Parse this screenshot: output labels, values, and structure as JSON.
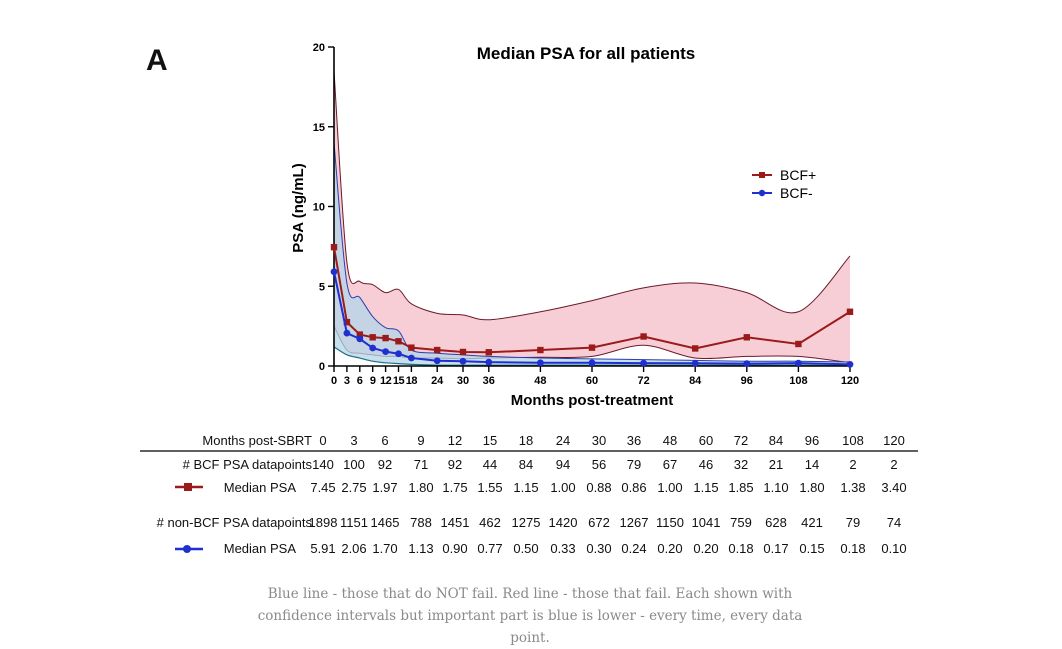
{
  "panel_label": "A",
  "chart_data": {
    "type": "line",
    "title": "Median PSA for all patients",
    "xlabel": "Months post-treatment",
    "ylabel": "PSA (ng/mL)",
    "xlim": [
      0,
      120
    ],
    "ylim": [
      0,
      20
    ],
    "x_ticks": [
      0,
      3,
      6,
      9,
      12,
      15,
      18,
      24,
      30,
      36,
      48,
      60,
      72,
      84,
      96,
      108,
      120
    ],
    "y_ticks": [
      0,
      5,
      10,
      15,
      20
    ],
    "legend_position": "right",
    "series": [
      {
        "name": "BCF+",
        "color": "#9b1b1b",
        "band_color": "#f7c6cf",
        "x": [
          0,
          3,
          6,
          9,
          12,
          15,
          18,
          24,
          30,
          36,
          48,
          60,
          72,
          84,
          96,
          108,
          120
        ],
        "median": [
          7.45,
          2.75,
          1.97,
          1.8,
          1.75,
          1.55,
          1.15,
          1.0,
          0.88,
          0.86,
          1.0,
          1.15,
          1.85,
          1.1,
          1.8,
          1.38,
          3.4
        ],
        "upper": [
          18.5,
          6.5,
          5.3,
          5.1,
          4.6,
          4.8,
          3.9,
          3.3,
          3.2,
          2.9,
          3.4,
          4.1,
          4.9,
          5.2,
          4.6,
          3.4,
          6.9
        ],
        "lower": [
          2.5,
          1.0,
          0.8,
          0.7,
          0.6,
          0.6,
          0.5,
          0.5,
          0.45,
          0.5,
          0.55,
          0.6,
          1.3,
          0.5,
          0.6,
          0.6,
          0.2
        ]
      },
      {
        "name": "BCF-",
        "color": "#1f2fd0",
        "band_color": "#b4d6e8",
        "x": [
          0,
          3,
          6,
          9,
          12,
          15,
          18,
          24,
          30,
          36,
          48,
          60,
          72,
          84,
          96,
          108,
          120
        ],
        "median": [
          5.91,
          2.06,
          1.7,
          1.13,
          0.9,
          0.77,
          0.5,
          0.33,
          0.3,
          0.24,
          0.2,
          0.2,
          0.18,
          0.17,
          0.15,
          0.18,
          0.1
        ],
        "upper": [
          14.0,
          5.2,
          4.3,
          3.1,
          2.4,
          2.2,
          1.0,
          0.8,
          0.7,
          0.6,
          0.5,
          0.45,
          0.4,
          0.35,
          0.3,
          0.3,
          0.25
        ],
        "lower": [
          1.2,
          0.7,
          0.5,
          0.3,
          0.2,
          0.15,
          0.1,
          0.05,
          0.05,
          0.05,
          0.05,
          0.05,
          0.05,
          0.05,
          0.05,
          0.05,
          0.02
        ]
      }
    ],
    "table": {
      "header_label": "Months post-SBRT",
      "months": [
        "0",
        "3",
        "6",
        "9",
        "12",
        "15",
        "18",
        "24",
        "30",
        "36",
        "48",
        "60",
        "72",
        "84",
        "96",
        "108",
        "120"
      ],
      "bcf_points_label": "# BCF PSA datapoints",
      "bcf_points": [
        "140",
        "100",
        "92",
        "71",
        "92",
        "44",
        "84",
        "94",
        "56",
        "79",
        "67",
        "46",
        "32",
        "21",
        "14",
        "2",
        "2"
      ],
      "bcf_median_label": "Median PSA",
      "bcf_median": [
        "7.45",
        "2.75",
        "1.97",
        "1.80",
        "1.75",
        "1.55",
        "1.15",
        "1.00",
        "0.88",
        "0.86",
        "1.00",
        "1.15",
        "1.85",
        "1.10",
        "1.80",
        "1.38",
        "3.40"
      ],
      "nonbcf_points_label": "# non-BCF PSA datapoints",
      "nonbcf_points": [
        "1898",
        "1151",
        "1465",
        "788",
        "1451",
        "462",
        "1275",
        "1420",
        "672",
        "1267",
        "1150",
        "1041",
        "759",
        "628",
        "421",
        "79",
        "74"
      ],
      "nonbcf_median_label": "Median PSA",
      "nonbcf_median": [
        "5.91",
        "2.06",
        "1.70",
        "1.13",
        "0.90",
        "0.77",
        "0.50",
        "0.33",
        "0.30",
        "0.24",
        "0.20",
        "0.20",
        "0.18",
        "0.17",
        "0.15",
        "0.18",
        "0.10"
      ]
    }
  },
  "caption": "Blue line - those that do NOT fail. Red line - those that fail. Each shown with confidence intervals but important part is blue is lower - every time, every data point."
}
